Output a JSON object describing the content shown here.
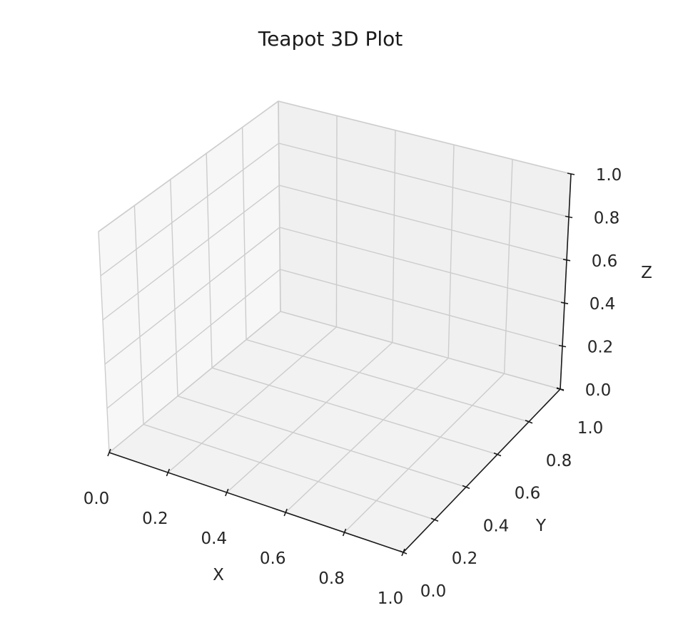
{
  "chart_data": {
    "type": "scatter",
    "projection": "3d",
    "title": "Teapot 3D Plot",
    "xlabel": "X",
    "ylabel": "Y",
    "zlabel": "Z",
    "xlim": [
      0.0,
      1.0
    ],
    "ylim": [
      0.0,
      1.0
    ],
    "zlim": [
      0.0,
      1.0
    ],
    "x_ticks": [
      "0.0",
      "0.2",
      "0.4",
      "0.6",
      "0.8",
      "1.0"
    ],
    "y_ticks": [
      "0.0",
      "0.2",
      "0.4",
      "0.6",
      "0.8",
      "1.0"
    ],
    "z_ticks": [
      "0.0",
      "0.2",
      "0.4",
      "0.6",
      "0.8",
      "1.0"
    ],
    "grid": true,
    "series": []
  }
}
